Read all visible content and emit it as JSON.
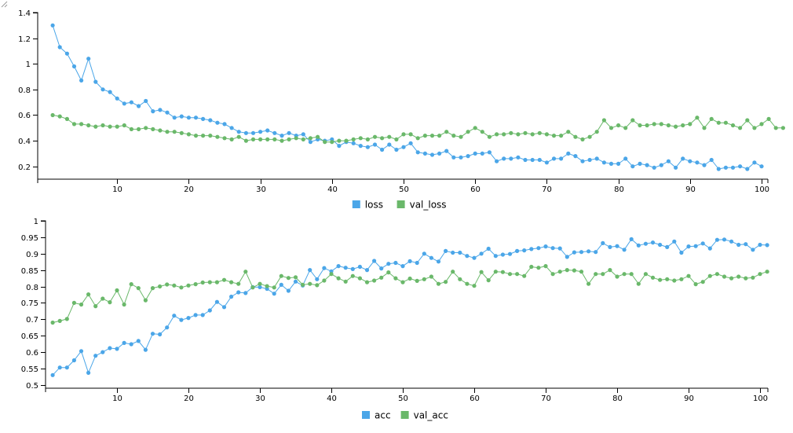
{
  "chart_data": [
    {
      "type": "line",
      "xlim": [
        0,
        100
      ],
      "ylim": [
        0.1,
        1.4
      ],
      "x_ticks": [
        10,
        20,
        30,
        40,
        50,
        60,
        70,
        80,
        90,
        100
      ],
      "y_ticks": [
        0.2,
        0.4,
        0.6,
        0.8,
        1,
        1.2,
        1.4
      ],
      "legend_position": "bottom-center",
      "grid": false,
      "series": [
        {
          "name": "loss",
          "color": "#4ba6e8",
          "values": [
            1.3,
            1.13,
            1.08,
            0.98,
            0.87,
            1.04,
            0.86,
            0.8,
            0.78,
            0.73,
            0.69,
            0.7,
            0.67,
            0.71,
            0.63,
            0.64,
            0.62,
            0.58,
            0.59,
            0.58,
            0.58,
            0.57,
            0.56,
            0.54,
            0.53,
            0.5,
            0.47,
            0.46,
            0.46,
            0.47,
            0.48,
            0.46,
            0.44,
            0.46,
            0.44,
            0.45,
            0.39,
            0.41,
            0.4,
            0.41,
            0.36,
            0.39,
            0.38,
            0.36,
            0.35,
            0.37,
            0.33,
            0.37,
            0.33,
            0.35,
            0.38,
            0.31,
            0.3,
            0.29,
            0.3,
            0.32,
            0.27,
            0.27,
            0.28,
            0.3,
            0.3,
            0.31,
            0.24,
            0.26,
            0.26,
            0.27,
            0.25,
            0.25,
            0.25,
            0.23,
            0.26,
            0.26,
            0.3,
            0.28,
            0.24,
            0.25,
            0.26,
            0.23,
            0.22,
            0.22,
            0.26,
            0.2,
            0.22,
            0.21,
            0.19,
            0.21,
            0.24,
            0.19,
            0.26,
            0.24,
            0.23,
            0.21,
            0.25,
            0.18,
            0.19,
            0.19,
            0.2,
            0.18,
            0.23,
            0.2
          ]
        },
        {
          "name": "val_loss",
          "color": "#6ab86a",
          "values": [
            0.6,
            0.59,
            0.57,
            0.53,
            0.53,
            0.52,
            0.51,
            0.52,
            0.51,
            0.51,
            0.52,
            0.49,
            0.49,
            0.5,
            0.49,
            0.48,
            0.47,
            0.47,
            0.46,
            0.45,
            0.44,
            0.44,
            0.44,
            0.43,
            0.42,
            0.41,
            0.43,
            0.4,
            0.41,
            0.41,
            0.41,
            0.41,
            0.4,
            0.41,
            0.42,
            0.41,
            0.42,
            0.43,
            0.39,
            0.39,
            0.4,
            0.4,
            0.41,
            0.42,
            0.41,
            0.43,
            0.42,
            0.43,
            0.41,
            0.45,
            0.45,
            0.42,
            0.44,
            0.44,
            0.44,
            0.47,
            0.44,
            0.43,
            0.47,
            0.5,
            0.47,
            0.43,
            0.45,
            0.45,
            0.46,
            0.45,
            0.46,
            0.45,
            0.46,
            0.45,
            0.44,
            0.44,
            0.47,
            0.43,
            0.41,
            0.43,
            0.47,
            0.56,
            0.5,
            0.52,
            0.5,
            0.56,
            0.52,
            0.52,
            0.53,
            0.53,
            0.52,
            0.51,
            0.52,
            0.53,
            0.58,
            0.5,
            0.57,
            0.54,
            0.54,
            0.52,
            0.5,
            0.56,
            0.5,
            0.53,
            0.57,
            0.5,
            0.5
          ]
        }
      ]
    },
    {
      "type": "line",
      "xlim": [
        0,
        100
      ],
      "ylim": [
        0.49,
        1.0
      ],
      "x_ticks": [
        10,
        20,
        30,
        40,
        50,
        60,
        70,
        80,
        90,
        100
      ],
      "y_ticks": [
        0.5,
        0.55,
        0.6,
        0.65,
        0.7,
        0.75,
        0.8,
        0.85,
        0.9,
        0.95,
        1
      ],
      "legend_position": "bottom-center",
      "grid": false,
      "series": [
        {
          "name": "acc",
          "color": "#4ba6e8",
          "values": [
            0.53,
            0.553,
            0.553,
            0.575,
            0.603,
            0.537,
            0.589,
            0.6,
            0.612,
            0.61,
            0.628,
            0.624,
            0.634,
            0.607,
            0.656,
            0.654,
            0.675,
            0.711,
            0.698,
            0.704,
            0.713,
            0.713,
            0.727,
            0.753,
            0.737,
            0.769,
            0.782,
            0.78,
            0.798,
            0.798,
            0.793,
            0.778,
            0.805,
            0.787,
            0.815,
            0.803,
            0.85,
            0.822,
            0.856,
            0.846,
            0.862,
            0.857,
            0.853,
            0.86,
            0.85,
            0.878,
            0.855,
            0.869,
            0.872,
            0.862,
            0.877,
            0.872,
            0.9,
            0.887,
            0.876,
            0.908,
            0.903,
            0.903,
            0.893,
            0.887,
            0.9,
            0.915,
            0.893,
            0.897,
            0.899,
            0.908,
            0.91,
            0.914,
            0.917,
            0.922,
            0.917,
            0.916,
            0.89,
            0.904,
            0.905,
            0.907,
            0.905,
            0.932,
            0.92,
            0.923,
            0.912,
            0.944,
            0.925,
            0.93,
            0.934,
            0.927,
            0.92,
            0.937,
            0.903,
            0.922,
            0.923,
            0.931,
            0.916,
            0.942,
            0.943,
            0.937,
            0.927,
            0.929,
            0.912,
            0.927,
            0.926
          ]
        },
        {
          "name": "val_acc",
          "color": "#6ab86a",
          "values": [
            0.69,
            0.695,
            0.701,
            0.75,
            0.745,
            0.776,
            0.74,
            0.763,
            0.752,
            0.788,
            0.745,
            0.807,
            0.795,
            0.758,
            0.795,
            0.8,
            0.806,
            0.803,
            0.797,
            0.803,
            0.807,
            0.812,
            0.813,
            0.813,
            0.82,
            0.813,
            0.808,
            0.845,
            0.797,
            0.808,
            0.801,
            0.797,
            0.832,
            0.826,
            0.828,
            0.805,
            0.808,
            0.804,
            0.818,
            0.838,
            0.825,
            0.815,
            0.832,
            0.825,
            0.813,
            0.818,
            0.827,
            0.843,
            0.825,
            0.813,
            0.824,
            0.817,
            0.822,
            0.83,
            0.808,
            0.814,
            0.845,
            0.822,
            0.808,
            0.802,
            0.844,
            0.819,
            0.845,
            0.844,
            0.838,
            0.838,
            0.832,
            0.86,
            0.857,
            0.862,
            0.838,
            0.845,
            0.85,
            0.849,
            0.845,
            0.808,
            0.838,
            0.838,
            0.85,
            0.83,
            0.838,
            0.838,
            0.808,
            0.838,
            0.827,
            0.82,
            0.822,
            0.818,
            0.822,
            0.832,
            0.807,
            0.814,
            0.832,
            0.838,
            0.83,
            0.825,
            0.83,
            0.825,
            0.827,
            0.838,
            0.845
          ]
        }
      ]
    }
  ]
}
